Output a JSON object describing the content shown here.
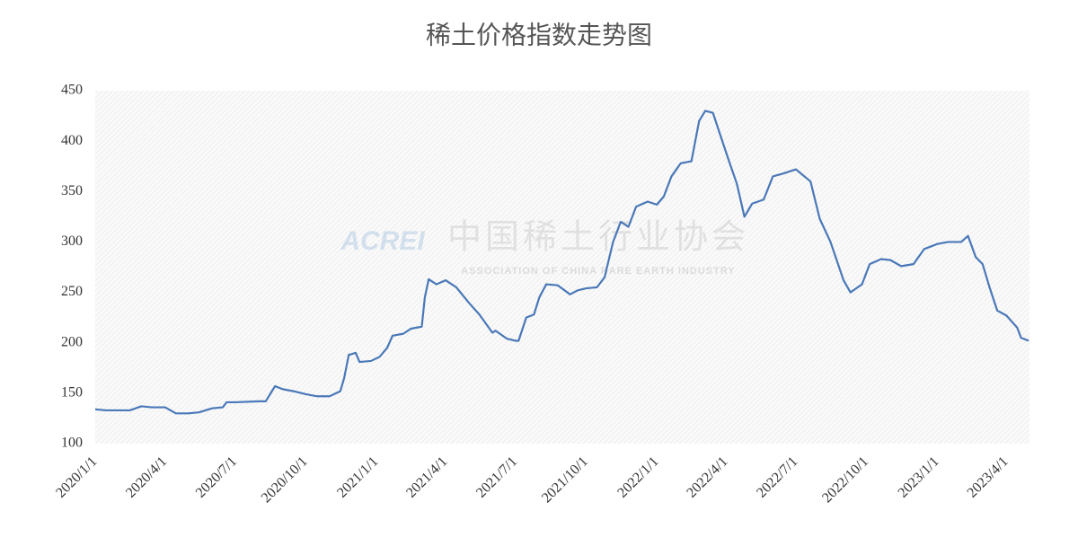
{
  "chart_data": {
    "type": "line",
    "title": "稀土价格指数走势图",
    "watermark": {
      "logo": "ACREI",
      "name": "中国稀土行业协会",
      "english": "ASSOCIATION OF CHINA RARE EARTH INDUSTRY"
    },
    "x": [
      "2020/1/1",
      "2020/1/15",
      "2020/2/1",
      "2020/2/15",
      "2020/3/1",
      "2020/3/15",
      "2020/4/1",
      "2020/4/15",
      "2020/5/1",
      "2020/5/15",
      "2020/6/1",
      "2020/6/15",
      "2020/6/20",
      "2020/7/1",
      "2020/8/1",
      "2020/8/10",
      "2020/8/22",
      "2020/9/1",
      "2020/9/15",
      "2020/10/1",
      "2020/10/15",
      "2020/11/1",
      "2020/11/15",
      "2020/11/20",
      "2020/11/26",
      "2020/12/5",
      "2020/12/10",
      "2020/12/25",
      "2021/1/5",
      "2021/1/15",
      "2021/1/22",
      "2021/2/5",
      "2021/2/15",
      "2021/3/1",
      "2021/3/5",
      "2021/3/10",
      "2021/3/20",
      "2021/4/1",
      "2021/4/15",
      "2021/5/1",
      "2021/5/15",
      "2021/6/1",
      "2021/6/5",
      "2021/6/20",
      "2021/7/1",
      "2021/7/5",
      "2021/7/15",
      "2021/7/25",
      "2021/8/1",
      "2021/8/10",
      "2021/8/25",
      "2021/9/10",
      "2021/9/20",
      "2021/10/1",
      "2021/10/15",
      "2021/10/25",
      "2021/11/5",
      "2021/11/15",
      "2021/11/25",
      "2021/12/5",
      "2021/12/20",
      "2022/1/1",
      "2022/1/10",
      "2022/1/20",
      "2022/2/1",
      "2022/2/15",
      "2022/2/25",
      "2022/3/5",
      "2022/3/15",
      "2022/3/25",
      "2022/4/5",
      "2022/4/15",
      "2022/4/25",
      "2022/5/5",
      "2022/5/20",
      "2022/6/1",
      "2022/6/15",
      "2022/7/1",
      "2022/7/20",
      "2022/8/1",
      "2022/8/15",
      "2022/9/1",
      "2022/9/10",
      "2022/9/25",
      "2022/10/5",
      "2022/10/20",
      "2022/11/1",
      "2022/11/15",
      "2022/12/1",
      "2022/12/15",
      "2023/1/1",
      "2023/1/15",
      "2023/2/1",
      "2023/2/10",
      "2023/2/20",
      "2023/3/1",
      "2023/3/10",
      "2023/3/20",
      "2023/4/1",
      "2023/4/15",
      "2023/4/20",
      "2023/4/30"
    ],
    "series": [
      {
        "name": "稀土价格指数",
        "color": "#4a78b8",
        "values": [
          134,
          133,
          133,
          133,
          137,
          136,
          136,
          130,
          130,
          131,
          135,
          136,
          141,
          141,
          142,
          142,
          157,
          154,
          152,
          149,
          147,
          147,
          152,
          165,
          188,
          190,
          181,
          182,
          186,
          195,
          207,
          209,
          214,
          216,
          245,
          263,
          258,
          262,
          255,
          240,
          228,
          210,
          212,
          204,
          202,
          202,
          225,
          228,
          245,
          258,
          257,
          248,
          252,
          254,
          255,
          265,
          300,
          320,
          315,
          335,
          340,
          337,
          345,
          365,
          378,
          380,
          420,
          430,
          428,
          405,
          380,
          358,
          325,
          338,
          342,
          365,
          368,
          372,
          360,
          323,
          300,
          262,
          250,
          258,
          278,
          283,
          282,
          276,
          278,
          293,
          298,
          300,
          300,
          306,
          285,
          278,
          255,
          232,
          227,
          215,
          205,
          202
        ]
      }
    ],
    "xlim": [
      "2020/1/1",
      "2023/5/1"
    ],
    "xticks": [
      "2020/1/1",
      "2020/4/1",
      "2020/7/1",
      "2020/10/1",
      "2021/1/1",
      "2021/4/1",
      "2021/7/1",
      "2021/10/1",
      "2022/1/1",
      "2022/4/1",
      "2022/7/1",
      "2022/10/1",
      "2023/1/1",
      "2023/4/1"
    ],
    "ylim": [
      100,
      450
    ],
    "yticks": [
      100,
      150,
      200,
      250,
      300,
      350,
      400,
      450
    ],
    "grid": false
  }
}
